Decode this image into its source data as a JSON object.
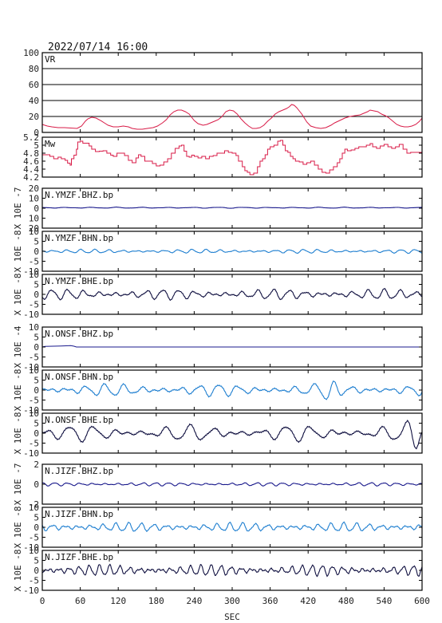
{
  "timestamp": "2022/07/14 16:00",
  "colors": {
    "vr": "#d81b47",
    "mw": "#d81b47",
    "bhz": "#1a1a8c",
    "bhn": "#1f7fd0",
    "bhe": "#101040",
    "frame": "#000000"
  },
  "chart_data": {
    "type": "line",
    "xlabel": "SEC",
    "xlim": [
      0,
      600
    ],
    "xticks": [
      "0",
      "60",
      "120",
      "180",
      "240",
      "300",
      "360",
      "420",
      "480",
      "540",
      "600"
    ],
    "panels": [
      {
        "id": "vr",
        "label": "VR",
        "ylabel": "",
        "ylim": [
          0,
          100
        ],
        "yticks": [
          "100",
          "80",
          "60",
          "40",
          "20",
          "0"
        ],
        "grid": true,
        "kind": "vr",
        "series": [
          [
            0,
            10
          ],
          [
            8,
            8
          ],
          [
            15,
            7
          ],
          [
            25,
            6
          ],
          [
            35,
            6
          ],
          [
            45,
            5.5
          ],
          [
            55,
            5
          ],
          [
            62,
            8
          ],
          [
            68,
            14
          ],
          [
            72,
            17
          ],
          [
            78,
            19
          ],
          [
            85,
            18
          ],
          [
            92,
            15
          ],
          [
            98,
            12
          ],
          [
            104,
            9
          ],
          [
            112,
            7
          ],
          [
            120,
            7
          ],
          [
            128,
            8
          ],
          [
            136,
            7
          ],
          [
            142,
            5
          ],
          [
            150,
            4
          ],
          [
            158,
            4
          ],
          [
            166,
            5
          ],
          [
            175,
            6
          ],
          [
            182,
            8
          ],
          [
            190,
            12
          ],
          [
            196,
            16
          ],
          [
            202,
            22
          ],
          [
            208,
            26
          ],
          [
            214,
            28
          ],
          [
            220,
            28
          ],
          [
            226,
            26
          ],
          [
            232,
            23
          ],
          [
            236,
            19
          ],
          [
            240,
            15
          ],
          [
            246,
            11
          ],
          [
            254,
            9
          ],
          [
            260,
            10
          ],
          [
            266,
            12
          ],
          [
            272,
            14
          ],
          [
            278,
            16
          ],
          [
            284,
            20
          ],
          [
            290,
            26
          ],
          [
            296,
            28
          ],
          [
            302,
            27
          ],
          [
            308,
            23
          ],
          [
            314,
            17
          ],
          [
            320,
            12
          ],
          [
            326,
            8
          ],
          [
            332,
            5
          ],
          [
            338,
            5
          ],
          [
            344,
            6
          ],
          [
            350,
            9
          ],
          [
            356,
            14
          ],
          [
            362,
            18
          ],
          [
            368,
            23
          ],
          [
            374,
            26
          ],
          [
            380,
            28
          ],
          [
            386,
            30
          ],
          [
            390,
            32
          ],
          [
            394,
            35
          ],
          [
            398,
            34
          ],
          [
            402,
            31
          ],
          [
            406,
            27
          ],
          [
            410,
            23
          ],
          [
            414,
            18
          ],
          [
            418,
            13
          ],
          [
            424,
            8
          ],
          [
            432,
            6
          ],
          [
            440,
            5
          ],
          [
            448,
            6
          ],
          [
            456,
            9
          ],
          [
            462,
            12
          ],
          [
            470,
            15
          ],
          [
            478,
            18
          ],
          [
            486,
            20
          ],
          [
            494,
            21
          ],
          [
            502,
            22
          ],
          [
            508,
            24
          ],
          [
            514,
            26
          ],
          [
            518,
            28
          ],
          [
            524,
            27
          ],
          [
            530,
            26
          ],
          [
            536,
            23
          ],
          [
            542,
            21
          ],
          [
            548,
            18
          ],
          [
            554,
            14
          ],
          [
            560,
            10
          ],
          [
            566,
            8
          ],
          [
            572,
            7
          ],
          [
            578,
            7
          ],
          [
            584,
            8
          ],
          [
            590,
            10
          ],
          [
            596,
            14
          ],
          [
            600,
            18
          ]
        ]
      },
      {
        "id": "mw",
        "label": "Mw",
        "ylabel": "",
        "ylim": [
          4.2,
          5.2
        ],
        "yticks": [
          "5.2",
          "5",
          "4.8",
          "4.6",
          "4.4",
          "4.2"
        ],
        "grid": false,
        "kind": "mw",
        "series": [
          [
            0,
            4.76
          ],
          [
            12,
            4.72
          ],
          [
            18,
            4.66
          ],
          [
            25,
            4.7
          ],
          [
            30,
            4.66
          ],
          [
            36,
            4.62
          ],
          [
            40,
            4.55
          ],
          [
            44,
            4.5
          ],
          [
            46,
            4.66
          ],
          [
            50,
            4.75
          ],
          [
            54,
            4.9
          ],
          [
            56,
            5.08
          ],
          [
            60,
            5.1
          ],
          [
            64,
            5.05
          ],
          [
            70,
            5.05
          ],
          [
            74,
            4.98
          ],
          [
            78,
            4.9
          ],
          [
            84,
            4.84
          ],
          [
            90,
            4.85
          ],
          [
            96,
            4.86
          ],
          [
            102,
            4.8
          ],
          [
            108,
            4.75
          ],
          [
            112,
            4.72
          ],
          [
            118,
            4.8
          ],
          [
            124,
            4.8
          ],
          [
            130,
            4.74
          ],
          [
            136,
            4.62
          ],
          [
            142,
            4.56
          ],
          [
            148,
            4.68
          ],
          [
            152,
            4.76
          ],
          [
            156,
            4.72
          ],
          [
            162,
            4.6
          ],
          [
            168,
            4.6
          ],
          [
            174,
            4.54
          ],
          [
            180,
            4.48
          ],
          [
            186,
            4.5
          ],
          [
            192,
            4.58
          ],
          [
            198,
            4.66
          ],
          [
            204,
            4.8
          ],
          [
            210,
            4.92
          ],
          [
            216,
            4.98
          ],
          [
            220,
            5.0
          ],
          [
            224,
            4.85
          ],
          [
            228,
            4.72
          ],
          [
            232,
            4.7
          ],
          [
            236,
            4.75
          ],
          [
            240,
            4.72
          ],
          [
            246,
            4.68
          ],
          [
            252,
            4.72
          ],
          [
            258,
            4.66
          ],
          [
            264,
            4.72
          ],
          [
            270,
            4.74
          ],
          [
            276,
            4.8
          ],
          [
            282,
            4.8
          ],
          [
            288,
            4.86
          ],
          [
            294,
            4.82
          ],
          [
            300,
            4.8
          ],
          [
            306,
            4.74
          ],
          [
            310,
            4.6
          ],
          [
            316,
            4.46
          ],
          [
            320,
            4.36
          ],
          [
            324,
            4.32
          ],
          [
            328,
            4.26
          ],
          [
            334,
            4.3
          ],
          [
            340,
            4.46
          ],
          [
            344,
            4.6
          ],
          [
            348,
            4.66
          ],
          [
            352,
            4.76
          ],
          [
            356,
            4.9
          ],
          [
            360,
            4.96
          ],
          [
            366,
            5.0
          ],
          [
            372,
            5.1
          ],
          [
            376,
            5.12
          ],
          [
            380,
            5.0
          ],
          [
            384,
            4.86
          ],
          [
            388,
            4.82
          ],
          [
            392,
            4.72
          ],
          [
            396,
            4.66
          ],
          [
            400,
            4.6
          ],
          [
            406,
            4.58
          ],
          [
            412,
            4.52
          ],
          [
            418,
            4.56
          ],
          [
            424,
            4.6
          ],
          [
            430,
            4.5
          ],
          [
            436,
            4.4
          ],
          [
            442,
            4.32
          ],
          [
            448,
            4.3
          ],
          [
            454,
            4.38
          ],
          [
            460,
            4.46
          ],
          [
            466,
            4.56
          ],
          [
            470,
            4.66
          ],
          [
            474,
            4.8
          ],
          [
            478,
            4.9
          ],
          [
            482,
            4.86
          ],
          [
            488,
            4.88
          ],
          [
            494,
            4.92
          ],
          [
            500,
            4.96
          ],
          [
            506,
            4.96
          ],
          [
            512,
            5.0
          ],
          [
            518,
            5.04
          ],
          [
            522,
            4.96
          ],
          [
            528,
            4.92
          ],
          [
            534,
            4.98
          ],
          [
            540,
            5.02
          ],
          [
            546,
            4.96
          ],
          [
            552,
            4.92
          ],
          [
            558,
            4.96
          ],
          [
            564,
            5.02
          ],
          [
            570,
            4.9
          ],
          [
            576,
            4.8
          ],
          [
            582,
            4.82
          ],
          [
            588,
            4.82
          ],
          [
            594,
            4.82
          ],
          [
            600,
            4.82
          ]
        ]
      },
      {
        "id": "ymzf-bhz",
        "label": "N.YMZF.BHZ.bp",
        "ylabel": "X 10E -7",
        "ylim": [
          -20,
          20
        ],
        "yticks": [
          "20",
          "10",
          "0",
          "10",
          "20"
        ],
        "grid": false,
        "kind": "wave",
        "color": "bhz",
        "offset": 0.5,
        "amp": 0.35,
        "period": 40,
        "mod": 0.3
      },
      {
        "id": "ymzf-bhn",
        "label": "N.YMZF.BHN.bp",
        "ylabel": "X 10E -8",
        "ylim": [
          -10,
          10
        ],
        "yticks": [
          "10",
          "5",
          "0",
          "-5",
          "-10"
        ],
        "grid": false,
        "kind": "wave",
        "color": "bhn",
        "offset": 0,
        "amp": 0.55,
        "period": 22,
        "mod": 0.6
      },
      {
        "id": "ymzf-bhe",
        "label": "N.YMZF.BHE.bp",
        "ylabel": "X 10E -8",
        "ylim": [
          -10,
          10
        ],
        "yticks": [
          "10",
          "5",
          "0",
          "-5",
          "-10"
        ],
        "grid": false,
        "kind": "wave",
        "color": "bhe",
        "offset": 0,
        "amp": 1.4,
        "period": 25,
        "mod": 0.7
      },
      {
        "id": "onsf-bhz",
        "label": "N.ONSF.BHZ.bp",
        "ylabel": "X 10E -4",
        "ylim": [
          -10,
          10
        ],
        "yticks": [
          "10",
          "5",
          "0",
          "-5",
          "-10"
        ],
        "grid": false,
        "kind": "step",
        "color": "bhz",
        "series": [
          [
            0,
            0
          ],
          [
            4,
            0.3
          ],
          [
            30,
            0.5
          ],
          [
            45,
            0.7
          ],
          [
            50,
            0.4
          ],
          [
            54,
            0
          ],
          [
            600,
            0
          ]
        ]
      },
      {
        "id": "onsf-bhn",
        "label": "N.ONSF.BHN.bp",
        "ylabel": "X 10E -8",
        "ylim": [
          -10,
          10
        ],
        "yticks": [
          "10",
          "5",
          "0",
          "-5",
          "-10"
        ],
        "grid": false,
        "kind": "wave",
        "color": "bhn",
        "offset": 0,
        "amp": 1.6,
        "period": 30,
        "mod": 0.8,
        "burst": [
          450,
          3.5
        ]
      },
      {
        "id": "onsf-bhe",
        "label": "N.ONSF.BHE.bp",
        "ylabel": "X 10E -8",
        "ylim": [
          -10,
          10
        ],
        "yticks": [
          "10",
          "5",
          "0",
          "-5",
          "-10"
        ],
        "grid": false,
        "kind": "wave",
        "color": "bhe",
        "offset": 0,
        "amp": 2.0,
        "period": 38,
        "mod": 0.9,
        "burst": [
          590,
          4.5
        ]
      },
      {
        "id": "jizf-bhz",
        "label": "N.JIZF.BHZ.bp",
        "ylabel": "X 10E -7",
        "ylim": [
          -3,
          3
        ],
        "yticks": [
          "2",
          "0",
          "-2"
        ],
        "grid": false,
        "kind": "wave",
        "color": "bhz",
        "offset": 0,
        "amp": 0.15,
        "period": 20,
        "mod": 0.5
      },
      {
        "id": "jizf-bhn",
        "label": "N.JIZF.BHN.bp",
        "ylabel": "X 10E -8",
        "ylim": [
          -10,
          10
        ],
        "yticks": [
          "10",
          "5",
          "0",
          "-5",
          "-10"
        ],
        "grid": false,
        "kind": "wave",
        "color": "bhn",
        "offset": 0,
        "amp": 1.3,
        "period": 20,
        "mod": 0.6
      },
      {
        "id": "jizf-bhe",
        "label": "N.JIZF.BHE.bp",
        "ylabel": "X 10E -8",
        "ylim": [
          -10,
          10
        ],
        "yticks": [
          "10",
          "5",
          "0",
          "-5",
          "-10"
        ],
        "grid": false,
        "kind": "wave",
        "color": "bhe",
        "offset": 0,
        "amp": 1.5,
        "period": 16,
        "mod": 0.7
      }
    ]
  }
}
